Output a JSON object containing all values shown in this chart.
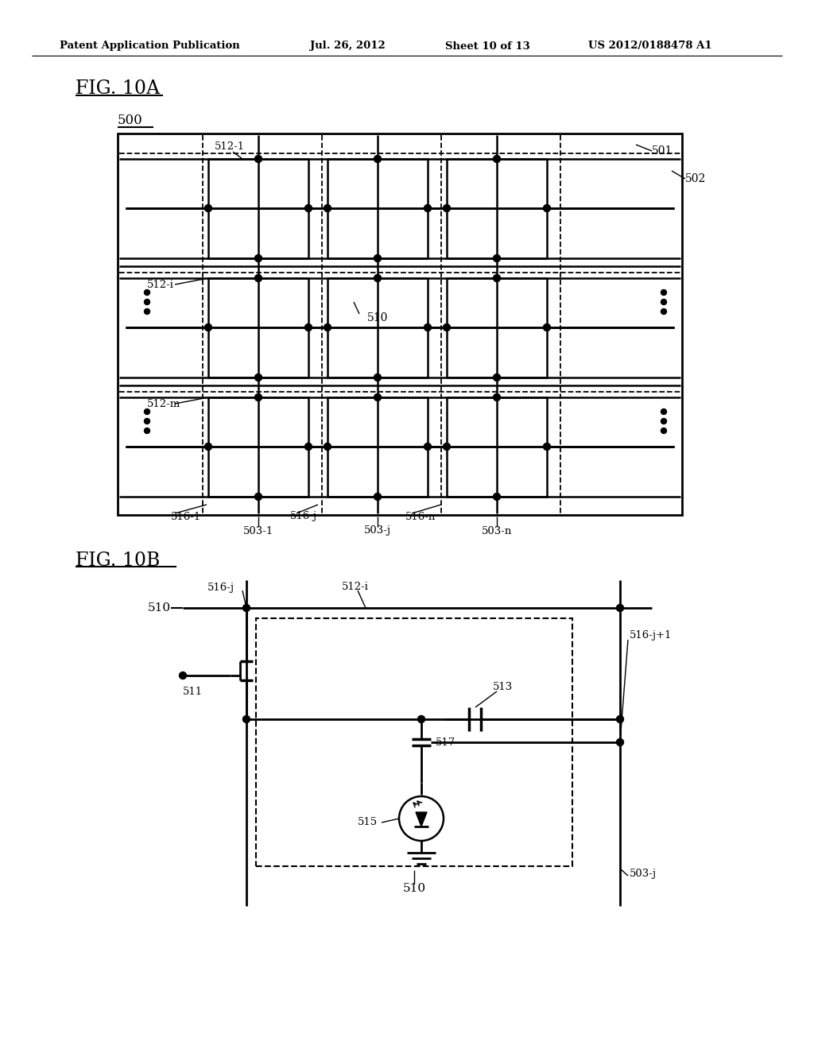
{
  "bg_color": "#ffffff",
  "line_color": "#000000",
  "header_text": "Patent Application Publication",
  "header_date": "Jul. 26, 2012",
  "header_sheet": "Sheet 10 of 13",
  "header_patent": "US 2012/0188478 A1",
  "fig10a_label": "FIG. 10A",
  "fig10b_label": "FIG. 10B",
  "label_500": "500",
  "label_501": "501",
  "label_502": "502",
  "label_510": "510",
  "label_503_1": "503-1",
  "label_503_j": "503-j",
  "label_503_n": "503-n",
  "label_512_1": "512-1",
  "label_512_i": "512-i",
  "label_512_m": "512-m",
  "label_516_1": "516-1",
  "label_516_j": "516-j",
  "label_516_n": "516-n",
  "label_510b": "510",
  "label_511": "511",
  "label_513": "513",
  "label_515": "515",
  "label_517": "517",
  "label_516j": "516-j",
  "label_512i": "512-i",
  "label_516j1": "516-j+1",
  "label_503j": "503-j"
}
